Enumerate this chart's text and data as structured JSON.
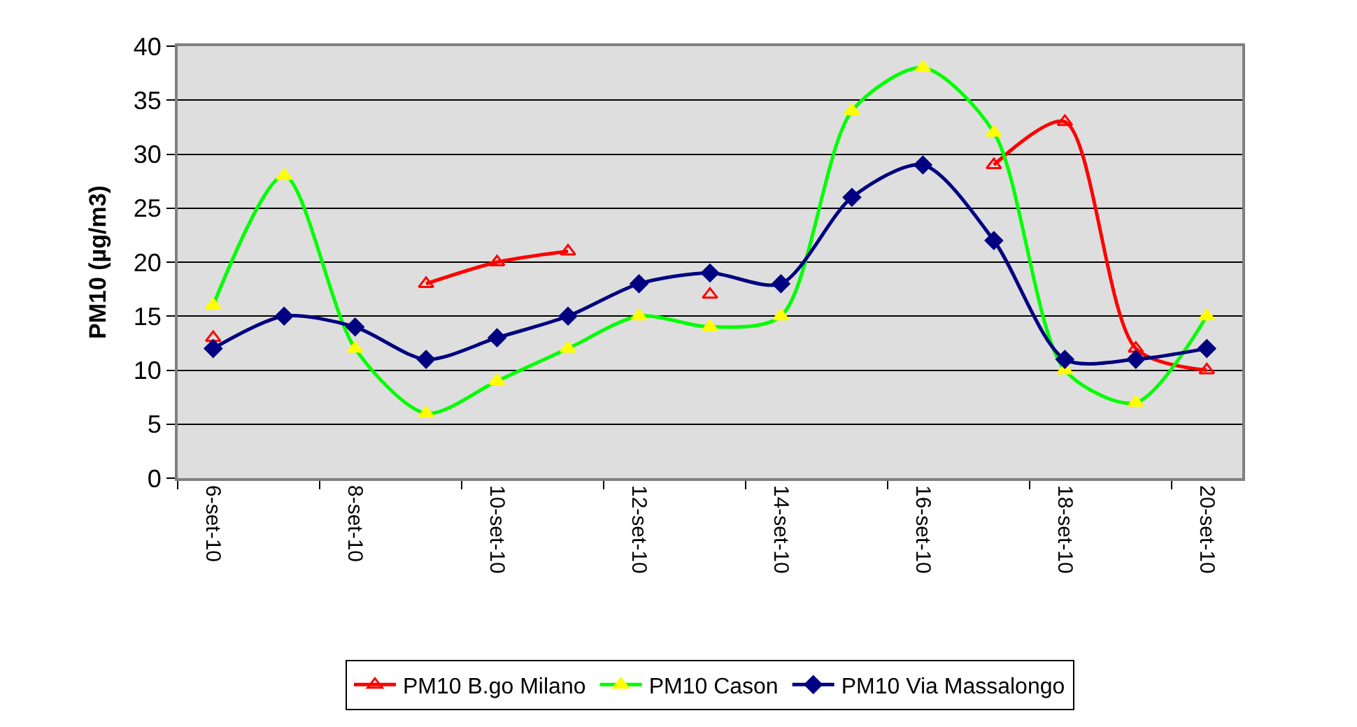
{
  "chart_data": {
    "type": "line",
    "ylabel": "PM10 (µg/m3)",
    "categories": [
      "6-set-10",
      null,
      "8-set-10",
      null,
      "10-set-10",
      null,
      "12-set-10",
      null,
      "14-set-10",
      null,
      "16-set-10",
      null,
      "18-set-10",
      null,
      "20-set-10"
    ],
    "series": [
      {
        "name": "PM10 B.go Milano",
        "color": "#ff0000",
        "marker": "triangle",
        "values": [
          13,
          null,
          null,
          18,
          20,
          21,
          null,
          17,
          null,
          null,
          null,
          29,
          33,
          12,
          10
        ]
      },
      {
        "name": "PM10 Cason",
        "color": "#00ff00",
        "marker": "triangle",
        "values": [
          16,
          28,
          12,
          6,
          9,
          12,
          15,
          14,
          15,
          34,
          38,
          32,
          10,
          7,
          15
        ]
      },
      {
        "name": "PM10 Via Massalongo",
        "color": "#000080",
        "marker": "diamond",
        "values": [
          12,
          15,
          14,
          11,
          13,
          15,
          18,
          19,
          18,
          26,
          29,
          22,
          11,
          11,
          12
        ]
      }
    ],
    "ylim": [
      0,
      40
    ],
    "yticks": [
      0,
      5,
      10,
      15,
      20,
      25,
      30,
      35,
      40
    ],
    "grid": "y",
    "legend": "bottom",
    "line_style": "solid"
  }
}
